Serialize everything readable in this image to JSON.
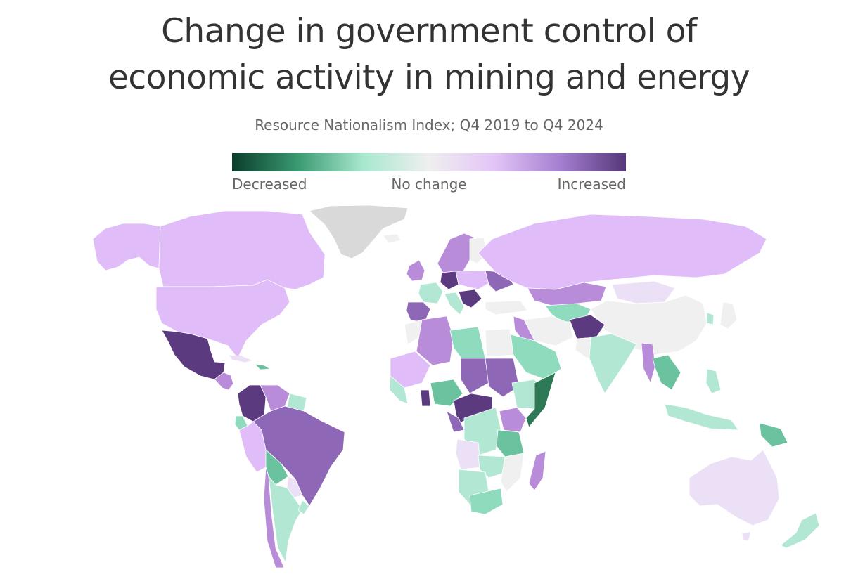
{
  "title_line1": "Change in government control of",
  "title_line2": "economic activity in mining and energy",
  "subtitle": "Resource Nationalism Index; Q4 2019 to Q4 2024",
  "legend": {
    "left": "Decreased",
    "middle": "No change",
    "right": "Increased",
    "stops": [
      "#0a3d2c",
      "#3a9a70",
      "#a8e8cf",
      "#efefef",
      "#e3c4f7",
      "#a57fd0",
      "#563779"
    ]
  },
  "colors": {
    "no_data": "#d9d9d9",
    "no_change": "#f0f0f0",
    "slight_increase": "#ece0f6",
    "increase": "#e0bcf8",
    "moderate_increase": "#b98cda",
    "strong_increase": "#8e67b7",
    "large_increase": "#5b3a80",
    "slight_decrease": "#b2e8d3",
    "decrease": "#8fdbbd",
    "moderate_decrease": "#6ac29f",
    "large_decrease": "#2f7a56"
  }
}
